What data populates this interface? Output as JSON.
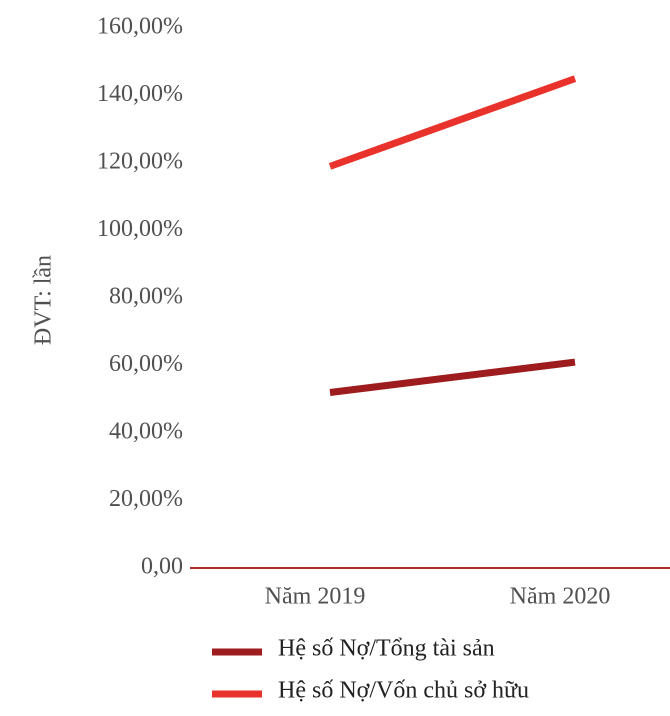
{
  "chart_data": {
    "type": "line",
    "y_label": "ĐVT: lần",
    "categories": [
      "Năm 2019",
      "Năm 2020"
    ],
    "series": [
      {
        "name": "Hệ số Nợ/Tổng tài sản",
        "color": "#9e1b1e",
        "values": [
          52,
          61
        ]
      },
      {
        "name": "Hệ số Nợ/Vốn chủ sở hữu",
        "color": "#e8322b",
        "values": [
          119,
          145
        ]
      }
    ],
    "ylim": [
      0,
      160
    ],
    "yticks": [
      {
        "value": 0,
        "label": "0,00"
      },
      {
        "value": 20,
        "label": "20,00%"
      },
      {
        "value": 40,
        "label": "40,00%"
      },
      {
        "value": 60,
        "label": "60,00%"
      },
      {
        "value": 80,
        "label": "80,00%"
      },
      {
        "value": 100,
        "label": "100,00%"
      },
      {
        "value": 120,
        "label": "120,00%"
      },
      {
        "value": 140,
        "label": "140,00%"
      },
      {
        "value": 160,
        "label": "160,00%"
      }
    ],
    "axis_color": "#b22a2a",
    "legend": "bottom"
  }
}
